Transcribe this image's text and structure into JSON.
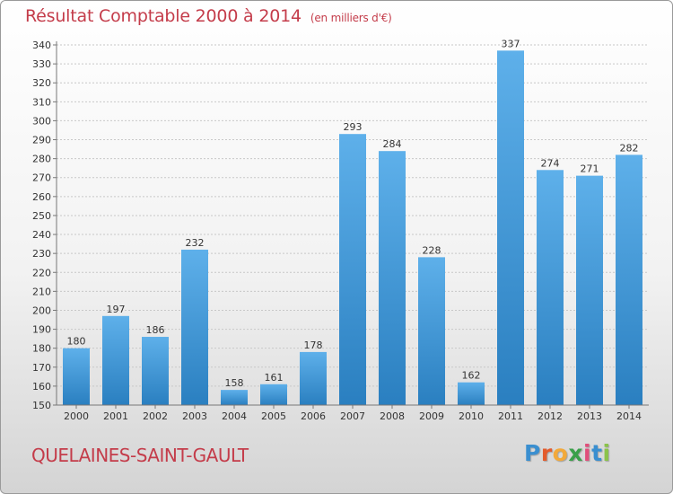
{
  "header": {
    "title": "Résultat Comptable 2000 à 2014",
    "unit_note": "(en milliers d'€)"
  },
  "footer": {
    "commune": "QUELAINES-SAINT-GAULT",
    "brand": [
      "P",
      "r",
      "o",
      "x",
      "i",
      "t",
      "i"
    ]
  },
  "colors": {
    "title": "#c43c4a",
    "bar_light": "#5eb0ea",
    "bar_dark": "#2a7fc0",
    "brand": [
      "#3a8fd0",
      "#e35b2c",
      "#f2a93b",
      "#3aa04a",
      "#e04f7b",
      "#3a8fd0",
      "#8bc34a"
    ]
  },
  "chart_data": {
    "type": "bar",
    "title": "Résultat Comptable 2000 à 2014",
    "xlabel": "",
    "ylabel": "",
    "categories": [
      "2000",
      "2001",
      "2002",
      "2003",
      "2004",
      "2005",
      "2006",
      "2007",
      "2008",
      "2009",
      "2010",
      "2011",
      "2012",
      "2013",
      "2014"
    ],
    "values": [
      180,
      197,
      186,
      232,
      158,
      161,
      178,
      293,
      284,
      228,
      162,
      337,
      274,
      271,
      282
    ],
    "ylim": [
      150,
      340
    ],
    "ytick_step": 10,
    "grid": true,
    "legend": "none"
  }
}
